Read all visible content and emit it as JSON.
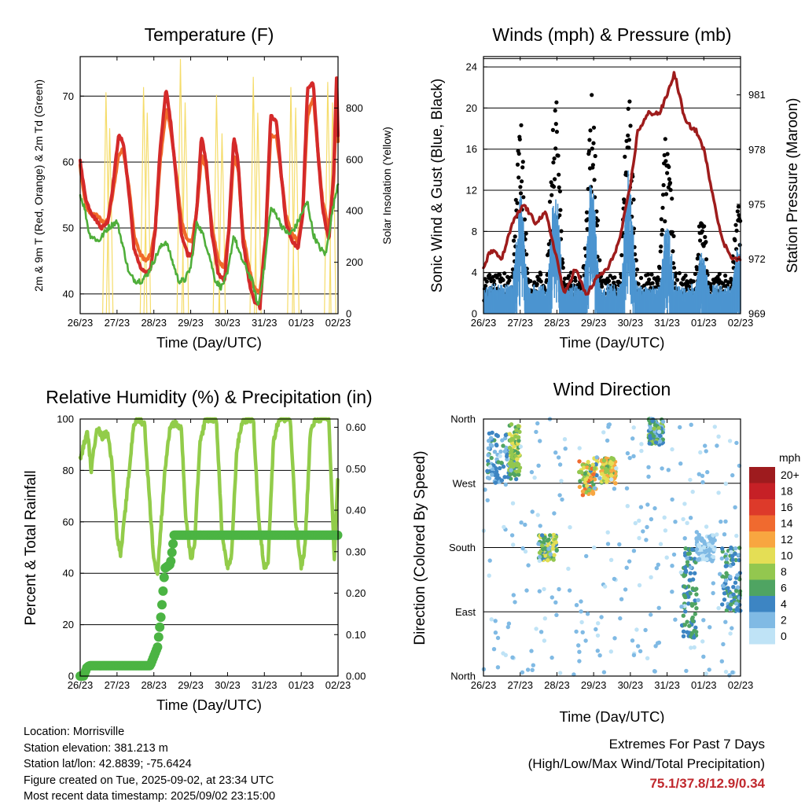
{
  "colors": {
    "temp2m": "#d42a2a",
    "temp9m": "#f06a2a",
    "dewpoint": "#4fae3a",
    "solar": "#f5dc6a",
    "sonic": "#4c95d0",
    "gust": "#000000",
    "pressure": "#9e1c1c",
    "rh": "#92cc4a",
    "precip": "#4bb443"
  },
  "x_ticks": [
    "26/23",
    "27/23",
    "28/23",
    "29/23",
    "30/23",
    "31/23",
    "01/23",
    "02/23"
  ],
  "chart_data": [
    {
      "type": "line",
      "title": "Temperature (F)",
      "xlabel": "Time (Day/UTC)",
      "ylabel": "2m & 9m T (Red, Orange) & 2m Td (Green)",
      "ylabel_right": "Solar Insolation (Yellow)",
      "ylim": [
        37,
        76
      ],
      "ylim_right": [
        0,
        1000
      ],
      "yticks": [
        40,
        50,
        60,
        70
      ],
      "yticks_right": [
        0,
        200,
        400,
        600,
        800
      ],
      "x_range_days": [
        0,
        7
      ],
      "grid": true,
      "series": [
        {
          "key": "temp2m",
          "x": [
            0,
            0.05,
            0.17,
            0.33,
            0.46,
            0.58,
            0.75,
            0.88,
            1.04,
            1.17,
            1.33,
            1.46,
            1.63,
            1.79,
            1.92,
            2.04,
            2.17,
            2.33,
            2.46,
            2.63,
            2.75,
            2.92,
            3.04,
            3.17,
            3.29,
            3.42,
            3.58,
            3.75,
            3.92,
            4.04,
            4.17,
            4.29,
            4.42,
            4.58,
            4.71,
            4.88,
            5.04,
            5.17,
            5.33,
            5.46,
            5.58,
            5.75,
            5.92,
            6.04,
            6.17,
            6.33,
            6.46,
            6.58,
            6.75,
            6.88,
            6.96,
            7.0
          ],
          "values": [
            60.5,
            58,
            54,
            52,
            51,
            50,
            51,
            56,
            64,
            63,
            55,
            47,
            44,
            43,
            44,
            50,
            62,
            71,
            66,
            56,
            49,
            46,
            46,
            53,
            64,
            60,
            49,
            43,
            42,
            50,
            64,
            60,
            48,
            42,
            39,
            38,
            49,
            67,
            66,
            58,
            51,
            48,
            47,
            52,
            71,
            72,
            61,
            53,
            48,
            58,
            73,
            64
          ]
        },
        {
          "key": "temp9m",
          "x": [
            0,
            0.05,
            0.17,
            0.33,
            0.46,
            0.58,
            0.75,
            0.88,
            1.04,
            1.17,
            1.33,
            1.46,
            1.63,
            1.79,
            1.92,
            2.04,
            2.17,
            2.33,
            2.46,
            2.63,
            2.75,
            2.92,
            3.04,
            3.17,
            3.29,
            3.42,
            3.58,
            3.75,
            3.92,
            4.04,
            4.17,
            4.29,
            4.42,
            4.58,
            4.71,
            4.88,
            5.04,
            5.17,
            5.33,
            5.46,
            5.58,
            5.75,
            5.92,
            6.04,
            6.17,
            6.33,
            6.46,
            6.58,
            6.75,
            6.88,
            6.96,
            7.0
          ],
          "values": [
            59.5,
            57,
            53,
            52,
            52,
            51,
            51,
            55,
            61,
            62,
            56,
            49,
            46,
            45,
            46,
            50,
            60,
            68,
            65,
            57,
            51,
            48,
            48,
            53,
            61,
            59,
            50,
            45,
            44,
            50,
            61,
            59,
            49,
            44,
            41,
            40,
            49,
            64,
            64,
            58,
            52,
            49,
            48,
            52,
            67,
            70,
            61,
            54,
            50,
            57,
            69,
            63
          ]
        },
        {
          "key": "dewpoint",
          "x": [
            0,
            0.12,
            0.25,
            0.5,
            0.75,
            1.0,
            1.17,
            1.33,
            1.5,
            1.67,
            1.83,
            2.0,
            2.17,
            2.33,
            2.5,
            2.67,
            2.83,
            3.0,
            3.17,
            3.33,
            3.5,
            3.67,
            3.83,
            4.0,
            4.17,
            4.33,
            4.5,
            4.67,
            4.83,
            5.0,
            5.17,
            5.33,
            5.5,
            5.67,
            5.83,
            6.0,
            6.17,
            6.33,
            6.5,
            6.67,
            6.83,
            7.0
          ],
          "values": [
            55,
            53,
            49,
            48,
            50,
            51,
            47,
            43,
            42,
            42,
            43,
            45,
            47,
            48,
            45,
            42,
            42,
            44,
            51,
            49,
            46,
            42,
            41,
            43,
            49,
            46,
            44,
            42,
            38,
            44,
            53,
            52,
            50,
            49,
            50,
            52,
            54,
            49,
            47,
            46,
            52,
            57
          ]
        }
      ],
      "solar_peak_x": [
        0.7,
        0.8,
        1.72,
        1.82,
        2.72,
        2.85,
        3.7,
        3.85,
        4.7,
        4.82,
        5.72,
        5.85,
        6.72,
        6.85
      ],
      "solar_peak_values": [
        860,
        720,
        880,
        780,
        990,
        820,
        850,
        700,
        920,
        780,
        880,
        800,
        900,
        820
      ]
    },
    {
      "type": "scatter",
      "title": "Winds (mph) & Pressure (mb)",
      "xlabel": "Time (Day/UTC)",
      "ylabel": "Sonic Wind & Gust (Blue, Black)",
      "ylabel_right": "Station Pressure (Maroon)",
      "ylim": [
        0,
        25
      ],
      "ylim_right": [
        969,
        983.1
      ],
      "yticks": [
        0,
        4,
        8,
        12,
        16,
        20,
        24
      ],
      "yticks_right": [
        969,
        972,
        975,
        978,
        981
      ],
      "x_range_days": [
        0,
        7
      ],
      "grid": true,
      "wind_peaks": [
        {
          "x": 1.0,
          "gust": 17,
          "sonic": 10
        },
        {
          "x": 1.95,
          "gust": 20,
          "sonic": 12
        },
        {
          "x": 2.95,
          "gust": 20,
          "sonic": 12
        },
        {
          "x": 3.95,
          "gust": 20,
          "sonic": 12
        },
        {
          "x": 5.0,
          "gust": 18,
          "sonic": 8
        },
        {
          "x": 5.95,
          "gust": 8,
          "sonic": 5
        },
        {
          "x": 6.95,
          "gust": 9,
          "sonic": 6
        }
      ],
      "pressure": {
        "x": [
          0,
          0.2,
          0.5,
          0.8,
          1.1,
          1.4,
          1.7,
          2.0,
          2.2,
          2.5,
          2.8,
          3.1,
          3.4,
          3.7,
          4.0,
          4.2,
          4.5,
          4.8,
          5.0,
          5.2,
          5.5,
          5.8,
          6.0,
          6.2,
          6.5,
          6.8,
          7.0
        ],
        "values": [
          971.5,
          972.5,
          972.0,
          974.0,
          975.0,
          974.0,
          974.5,
          972.0,
          970.0,
          971.5,
          970.0,
          971.0,
          971.5,
          973.0,
          976.0,
          979.0,
          980.0,
          980.0,
          981.0,
          982.2,
          979.5,
          979.0,
          978.0,
          976.0,
          973.0,
          972.0,
          972.0
        ]
      }
    },
    {
      "type": "line",
      "title": "Relative Humidity (%) & Precipitation (in)",
      "xlabel": "Time (Day/UTC)",
      "ylabel": "Percent & Total Rainfall",
      "ylim": [
        0,
        100
      ],
      "ylim_right": [
        0,
        0.62
      ],
      "yticks": [
        0,
        20,
        40,
        60,
        80,
        100
      ],
      "yticks_right": [
        0.0,
        0.1,
        0.2,
        0.3,
        0.4,
        0.5,
        0.6
      ],
      "yticklabels_right": [
        "0.00",
        "0.10",
        "0.20",
        "0.30",
        "0.40",
        "0.50",
        "0.60"
      ],
      "x_range_days": [
        0,
        7
      ],
      "grid": true,
      "series": [
        {
          "key": "rh",
          "x": [
            0,
            0.1,
            0.2,
            0.3,
            0.45,
            0.6,
            0.75,
            0.88,
            1.0,
            1.1,
            1.3,
            1.45,
            1.6,
            1.75,
            1.85,
            2.0,
            2.1,
            2.3,
            2.45,
            2.6,
            2.75,
            2.85,
            3.0,
            3.1,
            3.25,
            3.4,
            3.55,
            3.7,
            3.85,
            4.0,
            4.1,
            4.25,
            4.4,
            4.55,
            4.7,
            4.85,
            5.0,
            5.1,
            5.25,
            5.4,
            5.55,
            5.7,
            5.85,
            6.0,
            6.1,
            6.25,
            6.4,
            6.6,
            6.75,
            6.9,
            7.0
          ],
          "values": [
            84,
            90,
            95,
            80,
            97,
            93,
            95,
            80,
            55,
            47,
            75,
            98,
            100,
            98,
            75,
            45,
            40,
            80,
            98,
            98,
            96,
            65,
            45,
            50,
            90,
            100,
            100,
            100,
            55,
            42,
            45,
            88,
            99,
            100,
            100,
            60,
            42,
            45,
            92,
            100,
            100,
            100,
            60,
            42,
            50,
            95,
            100,
            100,
            100,
            45,
            80
          ]
        },
        {
          "key": "precip",
          "x": [
            0,
            0.1,
            0.18,
            0.25,
            0.5,
            1.0,
            1.5,
            1.9,
            2.1,
            2.2,
            2.3,
            2.45,
            2.55,
            2.6,
            3.0,
            4.0,
            5.0,
            6.0,
            7.0
          ],
          "values": [
            0,
            0,
            0.02,
            0.025,
            0.025,
            0.025,
            0.025,
            0.025,
            0.07,
            0.15,
            0.26,
            0.27,
            0.34,
            0.34,
            0.34,
            0.34,
            0.34,
            0.34,
            0.34
          ]
        }
      ]
    },
    {
      "type": "scatter",
      "title": "Wind Direction",
      "xlabel": "Time (Day/UTC)",
      "ylabel": "Direction (Colored By Speed)",
      "yticks": [
        "North",
        "West",
        "South",
        "East",
        "North"
      ],
      "x_range_days": [
        0,
        7
      ],
      "grid": true,
      "legend_title": "mph",
      "legend_labels": [
        "20+",
        "18",
        "16",
        "14",
        "12",
        "10",
        "8",
        "6",
        "4",
        "2",
        "0"
      ],
      "legend_colors": [
        "#9e1b1e",
        "#c62026",
        "#dd3a2a",
        "#f06a2f",
        "#f8a640",
        "#e4de55",
        "#93c74f",
        "#4fa462",
        "#3d85c3",
        "#80bae4",
        "#bfe3f6"
      ],
      "clusters": [
        {
          "x": [
            0.1,
            0.9
          ],
          "y": [
            0.75,
            0.95
          ],
          "speed": [
            2,
            6
          ]
        },
        {
          "x": [
            0.7,
            1.0
          ],
          "y": [
            0.78,
            0.98
          ],
          "speed": [
            6,
            10
          ]
        },
        {
          "x": [
            1.5,
            2.0
          ],
          "y": [
            0.45,
            0.55
          ],
          "speed": [
            2,
            11
          ]
        },
        {
          "x": [
            2.6,
            3.1
          ],
          "y": [
            0.7,
            0.85
          ],
          "speed": [
            4,
            14
          ]
        },
        {
          "x": [
            3.2,
            3.6
          ],
          "y": [
            0.75,
            0.85
          ],
          "speed": [
            6,
            13
          ]
        },
        {
          "x": [
            4.5,
            4.9
          ],
          "y": [
            0.9,
            1.0
          ],
          "speed": [
            2,
            8
          ]
        },
        {
          "x": [
            5.4,
            5.8
          ],
          "y": [
            0.15,
            0.5
          ],
          "speed": [
            3,
            7
          ]
        },
        {
          "x": [
            5.8,
            6.3
          ],
          "y": [
            0.45,
            0.55
          ],
          "speed": [
            0,
            3
          ]
        },
        {
          "x": [
            6.5,
            7.0
          ],
          "y": [
            0.25,
            0.5
          ],
          "speed": [
            2,
            7
          ]
        },
        {
          "x": [
            0,
            7
          ],
          "y": [
            0.0,
            1.0
          ],
          "speed": [
            0,
            3
          ]
        }
      ]
    }
  ],
  "footer": {
    "location": "Location: Morrisville",
    "elevation": "Station elevation: 381.213 m",
    "latlon": "Station lat/lon: 42.8839; -75.6424",
    "created": "Figure created on Tue, 2025-09-02, at 23:34 UTC",
    "recent": "Most recent data timestamp: 2025/09/02 23:15:00"
  },
  "extremes": {
    "title": "Extremes For Past 7 Days",
    "subtitle": "(High/Low/Max Wind/Total Precipitation)",
    "values": "75.1/37.8/12.9/0.34"
  }
}
